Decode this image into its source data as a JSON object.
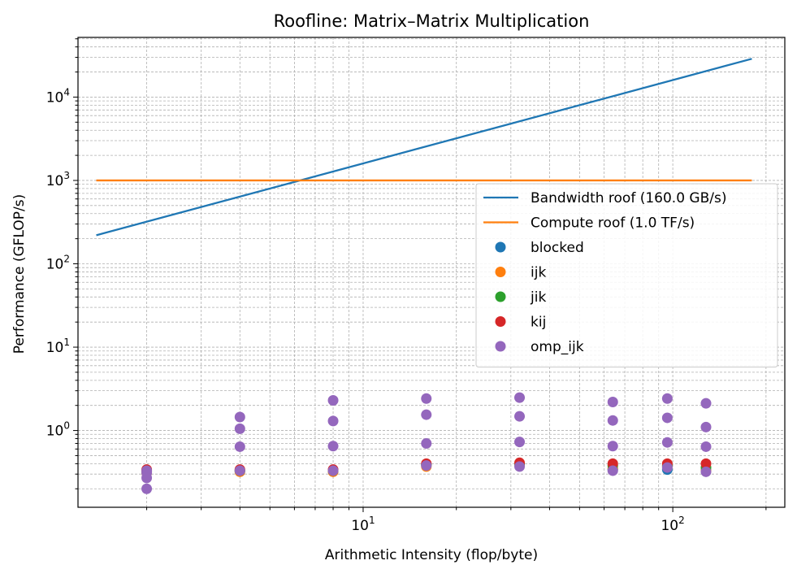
{
  "chart_data": {
    "type": "scatter",
    "title": "Roofline: Matrix–Matrix Multiplication",
    "xlabel": "Arithmetic Intensity (flop/byte)",
    "ylabel": "Performance (GFLOP/s)",
    "xscale": "log",
    "yscale": "log",
    "xlim": [
      1.2,
      230
    ],
    "ylim": [
      0.12,
      52000
    ],
    "grid": "both (major and minor), dashed",
    "legend_position": "center-right",
    "x_ticks": [
      {
        "base": "10",
        "exp": "1",
        "value": 10
      },
      {
        "base": "10",
        "exp": "2",
        "value": 100
      }
    ],
    "y_ticks": [
      {
        "base": "10",
        "exp": "0",
        "value": 1
      },
      {
        "base": "10",
        "exp": "1",
        "value": 10
      },
      {
        "base": "10",
        "exp": "2",
        "value": 100
      },
      {
        "base": "10",
        "exp": "3",
        "value": 1000
      },
      {
        "base": "10",
        "exp": "4",
        "value": 10000
      }
    ],
    "lines": [
      {
        "name": "Bandwidth roof (160.0 GB/s)",
        "color": "#1f77b4",
        "x": [
          1.375,
          180
        ],
        "y": [
          220,
          28800
        ]
      },
      {
        "name": "Compute roof (1.0 TF/s)",
        "color": "#ff7f0e",
        "x": [
          1.375,
          180
        ],
        "y": [
          1000,
          1000
        ]
      }
    ],
    "series": [
      {
        "name": "blocked",
        "color": "#1f77b4",
        "x": [
          2,
          2,
          4,
          8,
          16,
          32,
          64,
          96,
          128
        ],
        "y": [
          0.33,
          0.33,
          0.33,
          0.33,
          0.39,
          0.39,
          0.34,
          0.34,
          0.33
        ]
      },
      {
        "name": "ijk",
        "color": "#ff7f0e",
        "x": [
          2,
          2,
          4,
          8,
          16,
          32,
          64,
          96,
          128
        ],
        "y": [
          0.32,
          0.31,
          0.32,
          0.32,
          0.37,
          0.39,
          0.35,
          0.37,
          0.33
        ]
      },
      {
        "name": "jik",
        "color": "#2ca02c",
        "x": [
          2,
          2,
          4,
          8,
          16,
          32,
          64,
          96,
          128
        ],
        "y": [
          0.33,
          0.32,
          0.33,
          0.33,
          0.39,
          0.4,
          0.38,
          0.38,
          0.36
        ]
      },
      {
        "name": "kij",
        "color": "#d62728",
        "x": [
          2,
          2,
          4,
          8,
          16,
          32,
          64,
          96,
          128
        ],
        "y": [
          0.34,
          0.33,
          0.34,
          0.34,
          0.4,
          0.41,
          0.4,
          0.4,
          0.4
        ]
      },
      {
        "name": "omp_ijk",
        "color": "#9467bd",
        "x": [
          2,
          2,
          2,
          2,
          4,
          4,
          4,
          4,
          8,
          8,
          8,
          8,
          16,
          16,
          16,
          16,
          32,
          32,
          32,
          32,
          64,
          64,
          64,
          64,
          96,
          96,
          96,
          96,
          128,
          128,
          128,
          128
        ],
        "y": [
          0.33,
          0.31,
          0.27,
          0.2,
          1.45,
          1.05,
          0.64,
          0.33,
          2.3,
          1.3,
          0.65,
          0.33,
          2.42,
          1.55,
          0.7,
          0.38,
          2.48,
          1.48,
          0.73,
          0.37,
          2.2,
          1.32,
          0.65,
          0.33,
          2.42,
          1.42,
          0.72,
          0.36,
          2.12,
          1.1,
          0.64,
          0.32
        ]
      }
    ]
  }
}
